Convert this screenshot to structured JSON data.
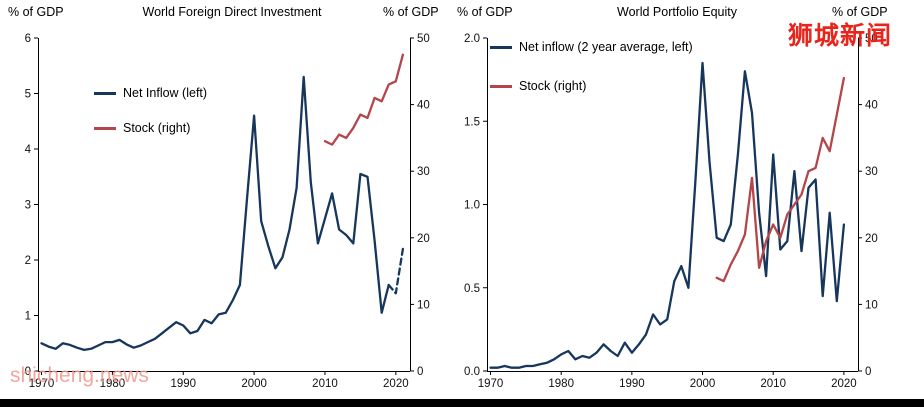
{
  "watermarks": {
    "top_right": "狮城新闻",
    "bottom_left": "shicheng.news",
    "top_right_color": "#e8241c",
    "bottom_left_color": "#f0978d"
  },
  "colors": {
    "net_inflow": "#16365c",
    "stock": "#b4464b",
    "axis": "#000000"
  },
  "chart_data": [
    {
      "type": "line",
      "title": "World Foreign Direct Investment",
      "left_axis_caption": "% of GDP",
      "right_axis_caption": "% of GDP",
      "xlim": [
        1969.5,
        2022
      ],
      "left_ylim": [
        0,
        6
      ],
      "right_ylim": [
        0,
        50
      ],
      "x_ticks": [
        [
          1970,
          "1970"
        ],
        [
          1980,
          "1980"
        ],
        [
          1990,
          "1990"
        ],
        [
          2000,
          "2000"
        ],
        [
          2010,
          "2010"
        ],
        [
          2020,
          "2020"
        ]
      ],
      "left_ticks": [
        [
          0,
          "0"
        ],
        [
          1,
          "1"
        ],
        [
          2,
          "2"
        ],
        [
          3,
          "3"
        ],
        [
          4,
          "4"
        ],
        [
          5,
          "5"
        ],
        [
          6,
          "6"
        ]
      ],
      "right_ticks": [
        [
          0,
          "0"
        ],
        [
          10,
          "10"
        ],
        [
          20,
          "20"
        ],
        [
          30,
          "30"
        ],
        [
          40,
          "40"
        ],
        [
          50,
          "50"
        ]
      ],
      "legend": [
        {
          "label": "Net Inflow (left)",
          "color": "#16365c"
        },
        {
          "label": "Stock (right)",
          "color": "#b4464b"
        }
      ],
      "series": [
        {
          "name": "Net Inflow (left)",
          "axis": "left",
          "color": "#16365c",
          "dash_from_year": 2019,
          "x": [
            1970,
            1971,
            1972,
            1973,
            1974,
            1975,
            1976,
            1977,
            1978,
            1979,
            1980,
            1981,
            1982,
            1983,
            1984,
            1985,
            1986,
            1987,
            1988,
            1989,
            1990,
            1991,
            1992,
            1993,
            1994,
            1995,
            1996,
            1997,
            1998,
            1999,
            2000,
            2001,
            2002,
            2003,
            2004,
            2005,
            2006,
            2007,
            2008,
            2009,
            2010,
            2011,
            2012,
            2013,
            2014,
            2015,
            2016,
            2017,
            2018,
            2019,
            2020,
            2021
          ],
          "y": [
            0.5,
            0.44,
            0.4,
            0.5,
            0.47,
            0.42,
            0.38,
            0.4,
            0.46,
            0.52,
            0.52,
            0.56,
            0.48,
            0.42,
            0.46,
            0.52,
            0.58,
            0.68,
            0.78,
            0.88,
            0.82,
            0.68,
            0.72,
            0.92,
            0.86,
            1.02,
            1.05,
            1.28,
            1.55,
            3.1,
            4.6,
            2.7,
            2.25,
            1.85,
            2.05,
            2.55,
            3.3,
            5.3,
            3.4,
            2.3,
            2.75,
            3.2,
            2.55,
            2.45,
            2.3,
            3.55,
            3.5,
            2.35,
            1.05,
            1.55,
            1.4,
            2.2
          ]
        },
        {
          "name": "Stock (right)",
          "axis": "right",
          "color": "#b4464b",
          "x": [
            2010,
            2011,
            2012,
            2013,
            2014,
            2015,
            2016,
            2017,
            2018,
            2019,
            2020,
            2021
          ],
          "y": [
            34.5,
            34.0,
            35.5,
            35.0,
            36.5,
            38.5,
            38.0,
            41.0,
            40.5,
            43.0,
            43.5,
            47.5
          ]
        }
      ]
    },
    {
      "type": "line",
      "title": "World Portfolio Equity",
      "left_axis_caption": "% of GDP",
      "right_axis_caption": "% of GDP",
      "xlim": [
        1969.5,
        2022
      ],
      "left_ylim": [
        0,
        2.0
      ],
      "right_ylim": [
        0,
        50
      ],
      "x_ticks": [
        [
          1970,
          "1970"
        ],
        [
          1980,
          "1980"
        ],
        [
          1990,
          "1990"
        ],
        [
          2000,
          "2000"
        ],
        [
          2010,
          "2010"
        ],
        [
          2020,
          "2020"
        ]
      ],
      "left_ticks": [
        [
          0,
          "0.0"
        ],
        [
          0.5,
          "0.5"
        ],
        [
          1,
          "1.0"
        ],
        [
          1.5,
          "1.5"
        ],
        [
          2,
          "2.0"
        ]
      ],
      "right_ticks": [
        [
          0,
          "0"
        ],
        [
          10,
          "10"
        ],
        [
          20,
          "20"
        ],
        [
          30,
          "30"
        ],
        [
          40,
          "40"
        ],
        [
          50,
          "50"
        ]
      ],
      "legend": [
        {
          "label": "Net inflow (2 year average, left)",
          "color": "#16365c"
        },
        {
          "label": "Stock (right)",
          "color": "#b4464b"
        }
      ],
      "series": [
        {
          "name": "Net inflow (2 year average, left)",
          "axis": "left",
          "color": "#16365c",
          "x": [
            1970,
            1971,
            1972,
            1973,
            1974,
            1975,
            1976,
            1977,
            1978,
            1979,
            1980,
            1981,
            1982,
            1983,
            1984,
            1985,
            1986,
            1987,
            1988,
            1989,
            1990,
            1991,
            1992,
            1993,
            1994,
            1995,
            1996,
            1997,
            1998,
            1999,
            2000,
            2001,
            2002,
            2003,
            2004,
            2005,
            2006,
            2007,
            2008,
            2009,
            2010,
            2011,
            2012,
            2013,
            2014,
            2015,
            2016,
            2017,
            2018,
            2019,
            2020
          ],
          "y": [
            0.02,
            0.02,
            0.03,
            0.02,
            0.02,
            0.03,
            0.03,
            0.04,
            0.05,
            0.07,
            0.1,
            0.12,
            0.07,
            0.09,
            0.08,
            0.11,
            0.16,
            0.12,
            0.09,
            0.17,
            0.11,
            0.16,
            0.22,
            0.34,
            0.28,
            0.31,
            0.54,
            0.63,
            0.5,
            1.15,
            1.85,
            1.25,
            0.8,
            0.78,
            0.88,
            1.3,
            1.8,
            1.55,
            0.95,
            0.57,
            1.3,
            0.73,
            0.78,
            1.2,
            0.72,
            1.1,
            1.15,
            0.45,
            0.95,
            0.42,
            0.88
          ]
        },
        {
          "name": "Stock (right)",
          "axis": "right",
          "color": "#b4464b",
          "x": [
            2002,
            2003,
            2004,
            2005,
            2006,
            2007,
            2008,
            2009,
            2010,
            2011,
            2012,
            2013,
            2014,
            2015,
            2016,
            2017,
            2018,
            2019,
            2020
          ],
          "y": [
            14,
            13.5,
            16,
            18,
            20.5,
            29,
            15.5,
            19.5,
            22,
            20,
            23.5,
            25,
            26.5,
            30,
            30.5,
            35,
            33,
            38.5,
            44
          ]
        }
      ]
    }
  ]
}
